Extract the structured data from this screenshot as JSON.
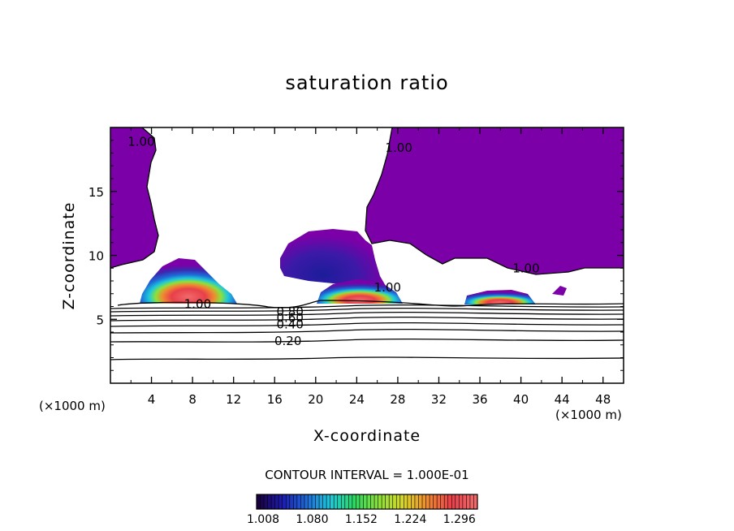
{
  "chart_data": {
    "type": "contour",
    "title": "saturation ratio",
    "xlabel": "X-coordinate",
    "ylabel": "Z-coordinate",
    "x_unit": "(×1000 m)",
    "xlim": [
      0,
      50
    ],
    "ylim": [
      0,
      20
    ],
    "x_ticks": [
      4,
      8,
      12,
      16,
      20,
      24,
      28,
      32,
      36,
      40,
      44,
      48
    ],
    "y_ticks": [
      5,
      10,
      15
    ],
    "contour_interval_text": "CONTOUR INTERVAL = 1.000E-01",
    "line_contour_labels": [
      {
        "text": "1.00",
        "x": 3,
        "z": 18.9
      },
      {
        "text": "1.00",
        "x": 28.1,
        "z": 18.4
      },
      {
        "text": "1.00",
        "x": 27,
        "z": 7.5
      },
      {
        "text": "1.00",
        "x": 40.5,
        "z": 9
      },
      {
        "text": "1.00",
        "x": 8.5,
        "z": 6.2
      },
      {
        "text": "0.80",
        "x": 17.5,
        "z": 5.6
      },
      {
        "text": "0.60",
        "x": 17.5,
        "z": 5.1
      },
      {
        "text": "0.40",
        "x": 17.5,
        "z": 4.6
      },
      {
        "text": "0.20",
        "x": 17.3,
        "z": 3.3
      }
    ],
    "colorbar": {
      "ticks": [
        "1.008",
        "1.080",
        "1.152",
        "1.224",
        "1.296"
      ],
      "min": 1.008,
      "max": 1.332,
      "colors": [
        "#1a0040",
        "#1c1cb0",
        "#1f6ad8",
        "#1ec9d8",
        "#2ed860",
        "#8ee03a",
        "#d8d828",
        "#f08a30",
        "#e8404a",
        "#f06a6a"
      ]
    },
    "fill_color_saturated": "#7b00a8"
  }
}
